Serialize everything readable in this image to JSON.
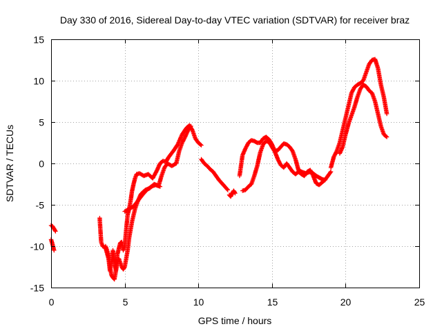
{
  "chart_data": {
    "type": "scatter",
    "title": "Day 330 of 2016, Sidereal Day-to-day VTEC variation (SDTVAR) for receiver braz",
    "xlabel": "GPS time / hours",
    "ylabel": "SDTVAR / TECUs",
    "xlim": [
      0,
      25
    ],
    "ylim": [
      -15,
      15
    ],
    "xticks": [
      0,
      5,
      10,
      15,
      20,
      25
    ],
    "yticks": [
      -15,
      -10,
      -5,
      0,
      5,
      10,
      15
    ],
    "xtick_labels": [
      "0",
      "5",
      "10",
      "15",
      "20",
      "25"
    ],
    "ytick_labels": [
      "-15",
      "-10",
      "-5",
      "0",
      "5",
      "10",
      "15"
    ],
    "grid": true,
    "marker": "+",
    "color": "#ff0000",
    "series": [
      {
        "name": "s1",
        "x": [
          0.0,
          0.1,
          0.2,
          0.3
        ],
        "y": [
          -7.5,
          -7.6,
          -7.9,
          -8.2
        ]
      },
      {
        "name": "s2",
        "x": [
          0.0,
          0.1,
          0.2
        ],
        "y": [
          -9.2,
          -9.8,
          -10.5
        ]
      },
      {
        "name": "s3",
        "x": [
          3.3,
          3.4,
          3.5,
          3.7,
          3.9,
          4.0,
          4.1,
          4.2,
          4.3,
          4.4,
          4.5,
          4.6,
          4.7,
          4.8,
          4.9,
          5.0,
          5.1,
          5.2,
          5.3,
          5.4,
          5.5,
          5.6,
          5.7,
          5.8,
          6.0,
          6.3,
          6.6,
          6.9,
          7.2,
          7.4,
          7.6,
          7.8,
          8.0,
          8.3,
          8.6,
          8.9,
          9.2,
          9.4,
          9.6,
          9.8,
          10.0,
          10.2
        ],
        "y": [
          -6.6,
          -9.5,
          -10.0,
          -10.2,
          -11.5,
          -13.0,
          -12.0,
          -10.5,
          -11.8,
          -13.0,
          -11.0,
          -10.3,
          -9.6,
          -9.5,
          -10.5,
          -10.0,
          -8.0,
          -6.2,
          -5.5,
          -4.5,
          -3.3,
          -2.5,
          -1.8,
          -1.3,
          -1.2,
          -1.5,
          -1.3,
          -1.8,
          -0.8,
          0.0,
          0.3,
          0.2,
          0.8,
          1.5,
          2.3,
          3.5,
          4.3,
          4.6,
          4.0,
          3.0,
          2.5,
          2.2
        ]
      },
      {
        "name": "s4",
        "x": [
          3.7,
          3.9,
          4.0,
          4.1,
          4.2,
          4.3,
          4.4,
          4.5,
          4.6,
          4.7,
          4.8,
          4.9,
          5.0,
          5.1,
          5.2,
          5.3,
          5.5,
          5.7,
          5.9,
          6.1,
          6.4,
          6.7,
          7.0,
          7.3,
          7.5,
          7.7,
          7.9,
          8.2,
          8.5,
          8.7,
          8.9,
          9.1,
          9.3,
          9.5
        ],
        "y": [
          -10.0,
          -11.0,
          -12.5,
          -13.5,
          -13.8,
          -14.0,
          -13.0,
          -12.0,
          -11.5,
          -12.0,
          -12.5,
          -12.8,
          -12.5,
          -11.5,
          -10.5,
          -9.0,
          -7.0,
          -5.5,
          -4.5,
          -3.7,
          -3.2,
          -3.0,
          -2.5,
          -2.7,
          -1.5,
          -0.5,
          0.0,
          -0.3,
          0.0,
          1.5,
          2.5,
          3.2,
          4.0,
          4.5
        ]
      },
      {
        "name": "s5",
        "x": [
          5.0,
          5.3,
          5.6,
          5.9,
          6.2,
          6.5,
          6.8,
          7.1,
          7.4
        ],
        "y": [
          -5.8,
          -5.5,
          -5.2,
          -4.5,
          -3.8,
          -3.2,
          -2.8,
          -2.6,
          -2.8
        ]
      },
      {
        "name": "s6",
        "x": [
          10.2,
          10.4,
          10.6,
          10.8,
          11.0,
          11.2,
          11.4,
          11.6,
          11.8,
          12.0
        ],
        "y": [
          0.5,
          0.0,
          -0.3,
          -0.7,
          -1.0,
          -1.5,
          -2.0,
          -2.4,
          -2.8,
          -3.2
        ]
      },
      {
        "name": "s7",
        "x": [
          12.1,
          12.2,
          12.3,
          12.4,
          12.5
        ],
        "y": [
          -3.8,
          -4.0,
          -3.6,
          -3.3,
          -3.6
        ]
      },
      {
        "name": "s8",
        "x": [
          12.8,
          13.0,
          13.2,
          13.4,
          13.6,
          13.8,
          14.0,
          14.2,
          14.4,
          14.6,
          14.8,
          15.0,
          15.2,
          15.4,
          15.6,
          15.8,
          16.0,
          16.2,
          16.4,
          16.6,
          16.8,
          17.0,
          17.3,
          17.6,
          17.8,
          18.0,
          18.2,
          18.4,
          18.6,
          18.8,
          19.0
        ],
        "y": [
          -1.5,
          1.0,
          1.8,
          2.5,
          2.8,
          2.7,
          2.5,
          2.5,
          3.0,
          3.2,
          2.9,
          2.3,
          1.5,
          1.6,
          2.0,
          2.4,
          2.3,
          2.0,
          1.5,
          0.5,
          -0.8,
          -1.0,
          -1.2,
          -1.0,
          -1.2,
          -1.5,
          -1.7,
          -1.9,
          -2.0,
          -1.5,
          -1.0
        ]
      },
      {
        "name": "s9",
        "x": [
          13.0,
          13.2,
          13.4,
          13.6,
          13.8,
          14.0,
          14.2,
          14.4,
          14.6,
          14.8,
          15.0,
          15.2,
          15.4,
          15.6,
          15.8,
          16.0,
          16.2,
          16.4,
          16.6,
          16.8,
          17.0,
          17.2,
          17.4,
          17.6,
          17.8,
          18.0,
          18.2,
          18.4,
          18.6
        ],
        "y": [
          -3.3,
          -3.2,
          -2.8,
          -2.5,
          -1.5,
          -0.3,
          1.3,
          2.3,
          2.7,
          2.6,
          2.0,
          1.4,
          0.5,
          -0.2,
          -0.5,
          0.0,
          -0.5,
          -1.0,
          -1.3,
          -1.0,
          -1.3,
          -1.5,
          -1.0,
          -0.8,
          -1.5,
          -2.4,
          -2.6,
          -2.3,
          -2.0
        ]
      },
      {
        "name": "s10",
        "x": [
          19.0,
          19.2,
          19.4,
          19.6,
          19.8,
          20.0,
          20.2,
          20.4,
          20.6,
          20.8,
          21.0,
          21.2,
          21.4,
          21.6,
          21.8,
          22.0,
          22.2,
          22.4,
          22.6,
          22.8
        ],
        "y": [
          -0.5,
          0.8,
          1.5,
          2.5,
          4.0,
          5.5,
          7.0,
          8.5,
          9.2,
          9.5,
          9.7,
          10.0,
          11.0,
          12.0,
          12.5,
          12.6,
          11.5,
          9.5,
          8.0,
          6.0
        ]
      },
      {
        "name": "s11",
        "x": [
          19.6,
          19.8,
          20.0,
          20.2,
          20.4,
          20.6,
          20.8,
          21.0,
          21.2,
          21.4,
          21.6,
          21.8,
          22.0,
          22.2,
          22.4,
          22.6,
          22.8
        ],
        "y": [
          1.2,
          2.0,
          3.5,
          4.8,
          5.8,
          6.8,
          8.0,
          9.0,
          9.5,
          9.3,
          8.8,
          8.5,
          7.5,
          6.0,
          4.5,
          3.5,
          3.2
        ]
      }
    ]
  }
}
